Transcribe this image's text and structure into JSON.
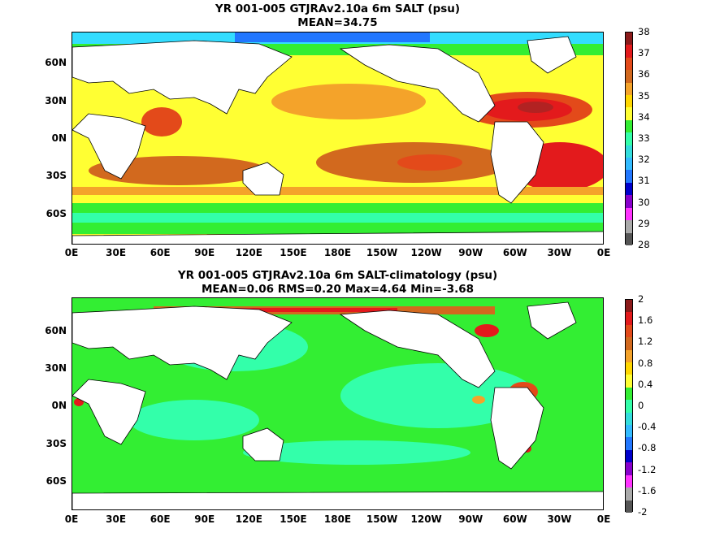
{
  "panels": [
    {
      "title_line1": "YR 001-005 GTJRAv2.10a 6m SALT (psu)",
      "title_line2": "MEAN=34.75",
      "colorbar_labels": [
        "38",
        "37",
        "36",
        "35",
        "34",
        "33",
        "32",
        "31",
        "30",
        "29",
        "28"
      ],
      "colorbar_colors": [
        "#8b1a1a",
        "#e31a1c",
        "#e34a1a",
        "#d2691e",
        "#f4a32a",
        "#ffd700",
        "#ffff33",
        "#33ee33",
        "#33ffaa",
        "#33dddd",
        "#33bbff",
        "#2277ff",
        "#0000cc",
        "#8800cc",
        "#ff33ff",
        "#aaaaaa",
        "#555555"
      ]
    },
    {
      "title_line1": "YR 001-005 GTJRAv2.10a 6m SALT-climatology (psu)",
      "title_line2": "MEAN=0.06   RMS=0.20   Max=4.64   Min=-3.68",
      "colorbar_labels": [
        "2",
        "1.6",
        "1.2",
        "0.8",
        "0.4",
        "0",
        "-0.4",
        "-0.8",
        "-1.2",
        "-1.6",
        "-2"
      ],
      "colorbar_colors": [
        "#8b1a1a",
        "#e31a1c",
        "#e34a1a",
        "#d2691e",
        "#f4a32a",
        "#ffd700",
        "#ffff33",
        "#33ee33",
        "#33ffaa",
        "#33dddd",
        "#33bbff",
        "#2277ff",
        "#0000cc",
        "#8800cc",
        "#ff33ff",
        "#aaaaaa",
        "#555555"
      ]
    }
  ],
  "lat_labels": [
    "60N",
    "30N",
    "0N",
    "30S",
    "60S"
  ],
  "lon_labels": [
    "0E",
    "30E",
    "60E",
    "90E",
    "120E",
    "150E",
    "180E",
    "150W",
    "120W",
    "90W",
    "60W",
    "30W",
    "0E"
  ]
}
